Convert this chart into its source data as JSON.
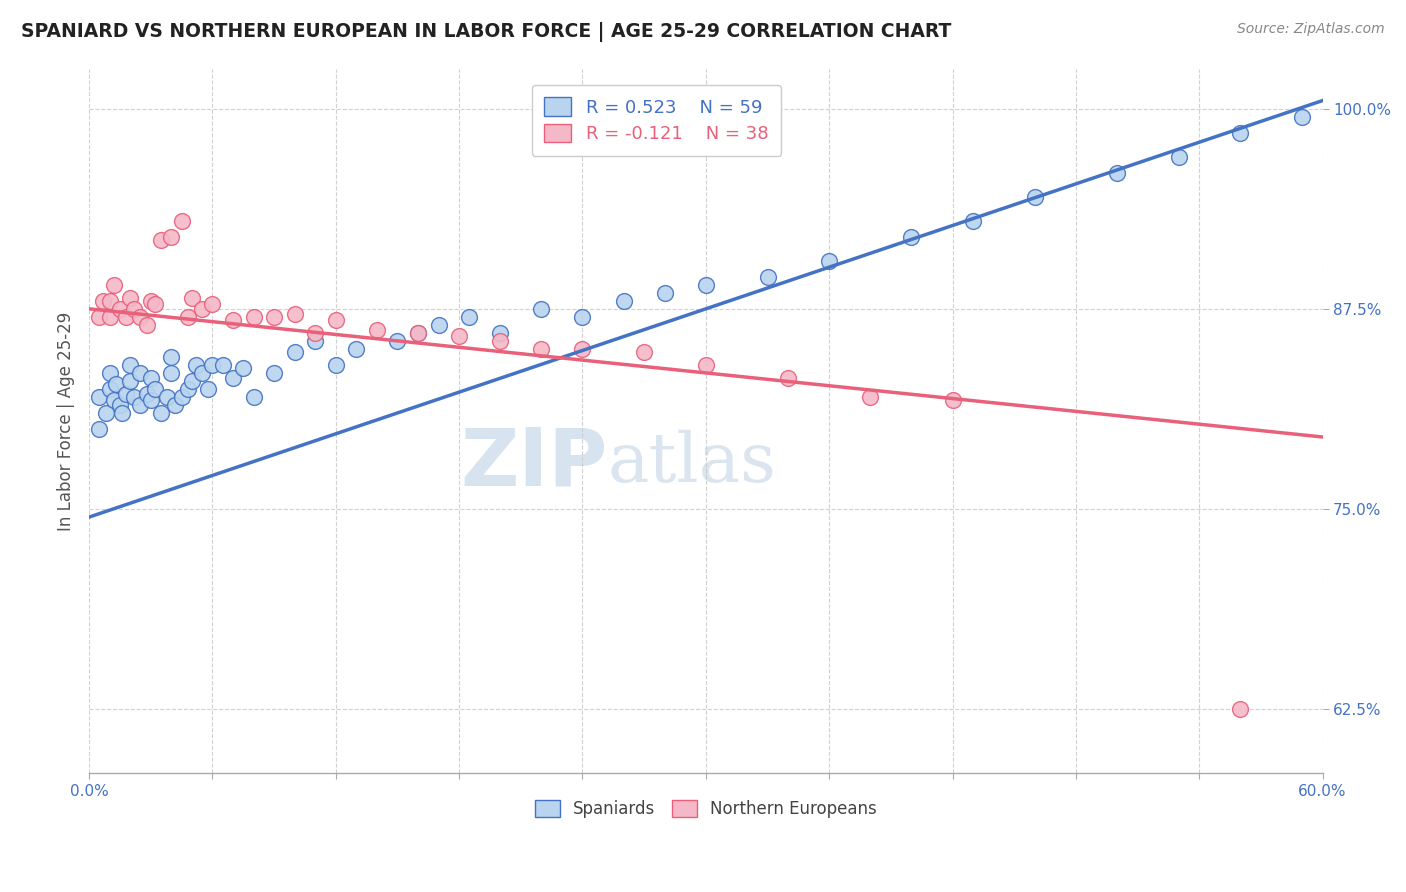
{
  "title": "SPANIARD VS NORTHERN EUROPEAN IN LABOR FORCE | AGE 25-29 CORRELATION CHART",
  "source": "Source: ZipAtlas.com",
  "ylabel": "In Labor Force | Age 25-29",
  "xlim": [
    0.0,
    0.6
  ],
  "ylim": [
    0.585,
    1.025
  ],
  "xticks": [
    0.0,
    0.06,
    0.12,
    0.18,
    0.24,
    0.3,
    0.36,
    0.42,
    0.48,
    0.54,
    0.6
  ],
  "xticklabels": [
    "0.0%",
    "",
    "",
    "",
    "",
    "",
    "",
    "",
    "",
    "",
    "60.0%"
  ],
  "yticks": [
    0.625,
    0.75,
    0.875,
    1.0
  ],
  "yticklabels": [
    "62.5%",
    "75.0%",
    "87.5%",
    "100.0%"
  ],
  "blue_R": 0.523,
  "blue_N": 59,
  "pink_R": -0.121,
  "pink_N": 38,
  "blue_color": "#b8d4ee",
  "pink_color": "#f4b8c8",
  "blue_line_color": "#4472c4",
  "pink_line_color": "#e8607a",
  "watermark_zip": "ZIP",
  "watermark_atlas": "atlas",
  "blue_line_y0": 0.745,
  "blue_line_y1": 1.005,
  "pink_line_y0": 0.875,
  "pink_line_y1": 0.795,
  "blue_dots_x": [
    0.005,
    0.005,
    0.008,
    0.01,
    0.01,
    0.012,
    0.013,
    0.015,
    0.016,
    0.018,
    0.02,
    0.02,
    0.022,
    0.025,
    0.025,
    0.028,
    0.03,
    0.03,
    0.032,
    0.035,
    0.038,
    0.04,
    0.04,
    0.042,
    0.045,
    0.048,
    0.05,
    0.052,
    0.055,
    0.058,
    0.06,
    0.065,
    0.07,
    0.075,
    0.08,
    0.09,
    0.1,
    0.11,
    0.12,
    0.13,
    0.15,
    0.16,
    0.17,
    0.185,
    0.2,
    0.22,
    0.24,
    0.26,
    0.28,
    0.3,
    0.33,
    0.36,
    0.4,
    0.43,
    0.46,
    0.5,
    0.53,
    0.56,
    0.59
  ],
  "blue_dots_y": [
    0.8,
    0.82,
    0.81,
    0.825,
    0.835,
    0.818,
    0.828,
    0.815,
    0.81,
    0.822,
    0.83,
    0.84,
    0.82,
    0.815,
    0.835,
    0.822,
    0.818,
    0.832,
    0.825,
    0.81,
    0.82,
    0.835,
    0.845,
    0.815,
    0.82,
    0.825,
    0.83,
    0.84,
    0.835,
    0.825,
    0.84,
    0.84,
    0.832,
    0.838,
    0.82,
    0.835,
    0.848,
    0.855,
    0.84,
    0.85,
    0.855,
    0.86,
    0.865,
    0.87,
    0.86,
    0.875,
    0.87,
    0.88,
    0.885,
    0.89,
    0.895,
    0.905,
    0.92,
    0.93,
    0.945,
    0.96,
    0.97,
    0.985,
    0.995
  ],
  "pink_dots_x": [
    0.005,
    0.007,
    0.01,
    0.01,
    0.012,
    0.015,
    0.018,
    0.02,
    0.022,
    0.025,
    0.028,
    0.03,
    0.032,
    0.035,
    0.04,
    0.045,
    0.048,
    0.05,
    0.055,
    0.06,
    0.07,
    0.08,
    0.09,
    0.1,
    0.11,
    0.12,
    0.14,
    0.16,
    0.18,
    0.2,
    0.22,
    0.24,
    0.27,
    0.3,
    0.34,
    0.38,
    0.42,
    0.56
  ],
  "pink_dots_y": [
    0.87,
    0.88,
    0.87,
    0.88,
    0.89,
    0.875,
    0.87,
    0.882,
    0.875,
    0.87,
    0.865,
    0.88,
    0.878,
    0.918,
    0.92,
    0.93,
    0.87,
    0.882,
    0.875,
    0.878,
    0.868,
    0.87,
    0.87,
    0.872,
    0.86,
    0.868,
    0.862,
    0.86,
    0.858,
    0.855,
    0.85,
    0.85,
    0.848,
    0.84,
    0.832,
    0.82,
    0.818,
    0.625
  ]
}
